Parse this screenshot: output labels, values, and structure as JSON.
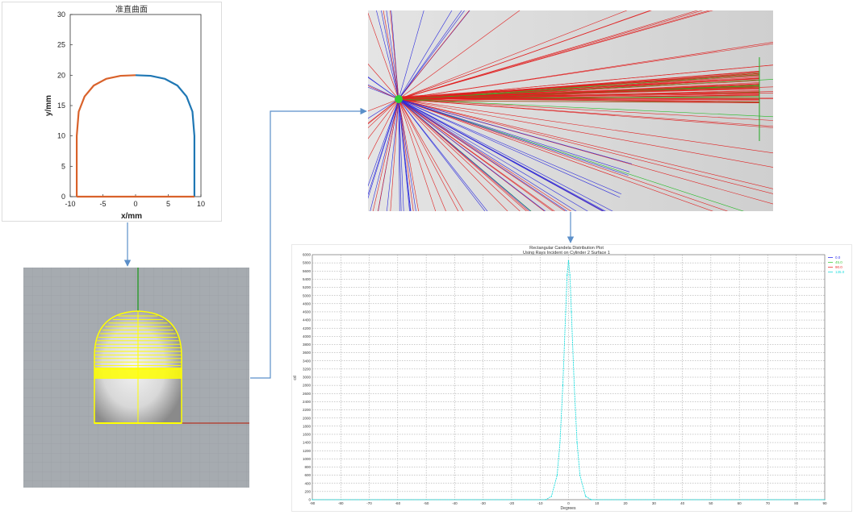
{
  "colors": {
    "arrow": "#5b8fc9",
    "left_half": "#d9622b",
    "right_half": "#1f77b4",
    "wire_yellow": "#ffff00",
    "viewport_bg": "#a6abb0",
    "ray_red": "#e02020",
    "ray_green": "#22bb22",
    "ray_blue": "#2b2bdd",
    "cyan_series": "#22dddd"
  },
  "profile_plot": {
    "title": "准直曲面",
    "xlabel": "x/mm",
    "ylabel": "y/mm",
    "xticks": [
      "-10",
      "-5",
      "0",
      "5",
      "10"
    ],
    "yticks": [
      "0",
      "5",
      "10",
      "15",
      "20",
      "25",
      "30"
    ]
  },
  "model_view": {
    "icon": "3d-collimator-wireframe"
  },
  "ray_trace": {
    "icon": "ray-trace-view"
  },
  "candela_plot": {
    "title_line1": "Rectangular Candela Distribution Plot",
    "title_line2": "Using Rays Incident on Cylinder 2 Surface 1",
    "xlabel": "Degrees",
    "ylabel": "cd",
    "legend": [
      "0.0",
      "45.0",
      "90.0",
      "135.0"
    ],
    "legend_colors": [
      "#3333ee",
      "#44cc44",
      "#ee3333",
      "#22dddd"
    ],
    "xticks": [
      "-90",
      "-80",
      "-70",
      "-60",
      "-50",
      "-40",
      "-30",
      "-20",
      "-10",
      "0",
      "10",
      "20",
      "30",
      "40",
      "50",
      "60",
      "70",
      "80",
      "90"
    ],
    "yticks": [
      "0",
      "200",
      "400",
      "600",
      "800",
      "1000",
      "1200",
      "1400",
      "1600",
      "1800",
      "2000",
      "2200",
      "2400",
      "2600",
      "2800",
      "3000",
      "3200",
      "3400",
      "3600",
      "3800",
      "4000",
      "4200",
      "4400",
      "4600",
      "4800",
      "5000",
      "5200",
      "5400",
      "5600",
      "5800",
      "6000"
    ]
  },
  "chart_data": [
    {
      "type": "line",
      "title": "准直曲面",
      "xlabel": "x/mm",
      "ylabel": "y/mm",
      "xlim": [
        -10,
        10
      ],
      "ylim": [
        0,
        30
      ],
      "grid": false,
      "series": [
        {
          "x": [
            -9,
            -9,
            -8.7,
            -7.8,
            -6.4,
            -4.5,
            -2.3,
            0
          ],
          "y": [
            0,
            10,
            14,
            16.5,
            18.3,
            19.4,
            19.9,
            20
          ]
        },
        {
          "x": [
            0,
            2.3,
            4.5,
            6.4,
            7.8,
            8.7,
            9,
            9
          ],
          "y": [
            20,
            19.9,
            19.4,
            18.3,
            16.5,
            14,
            10,
            0
          ]
        },
        {
          "x": [
            -9,
            9
          ],
          "y": [
            0,
            0
          ]
        }
      ]
    },
    {
      "type": "line",
      "title": "Rectangular Candela Distribution Plot",
      "subtitle": "Using Rays Incident on Cylinder 2 Surface 1",
      "xlabel": "Degrees",
      "ylabel": "cd",
      "xlim": [
        -90,
        90
      ],
      "ylim": [
        0,
        6000
      ],
      "grid": true,
      "legend": "top-right",
      "series": [
        {
          "name": "135.0",
          "x": [
            -90,
            -8,
            -6,
            -4,
            -3,
            -2,
            -1,
            -0.5,
            0,
            0.5,
            1,
            2,
            3,
            4,
            6,
            8,
            90
          ],
          "y": [
            0,
            0,
            80,
            600,
            1400,
            2800,
            4600,
            5500,
            5850,
            5500,
            4600,
            2800,
            1400,
            600,
            80,
            0,
            0
          ]
        }
      ]
    }
  ]
}
